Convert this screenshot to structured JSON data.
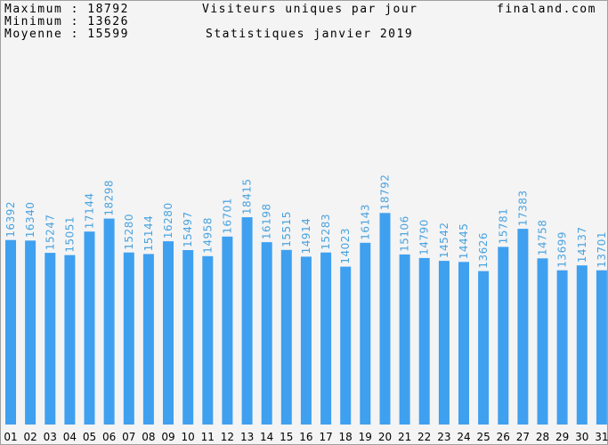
{
  "stats": {
    "max_label": "Maximum",
    "max_value": "18792",
    "min_label": "Minimum",
    "min_value": "13626",
    "avg_label": "Moyenne",
    "avg_value": "15599",
    "separator": ":"
  },
  "header": {
    "title": "Visiteurs uniques par jour",
    "subtitle": "Statistiques janvier 2019",
    "site": "finaland.com"
  },
  "colors": {
    "bar": "#3fa0f0",
    "value_label": "#4aa3df",
    "background": "#f4f4f4"
  },
  "chart_data": {
    "type": "bar",
    "title": "Visiteurs uniques par jour",
    "subtitle": "Statistiques janvier 2019",
    "categories": [
      "01",
      "02",
      "03",
      "04",
      "05",
      "06",
      "07",
      "08",
      "09",
      "10",
      "11",
      "12",
      "13",
      "14",
      "15",
      "16",
      "17",
      "18",
      "19",
      "20",
      "21",
      "22",
      "23",
      "24",
      "25",
      "26",
      "27",
      "28",
      "29",
      "30",
      "31"
    ],
    "values": [
      16392,
      16340,
      15247,
      15051,
      17144,
      18298,
      15280,
      15144,
      16280,
      15497,
      14958,
      16701,
      18415,
      16198,
      15515,
      14914,
      15283,
      14023,
      16143,
      18792,
      15106,
      14790,
      14542,
      14445,
      13626,
      15781,
      17383,
      14758,
      13699,
      14137,
      13701
    ],
    "ylim": [
      0,
      37000
    ],
    "grid": false,
    "legend": "none"
  }
}
